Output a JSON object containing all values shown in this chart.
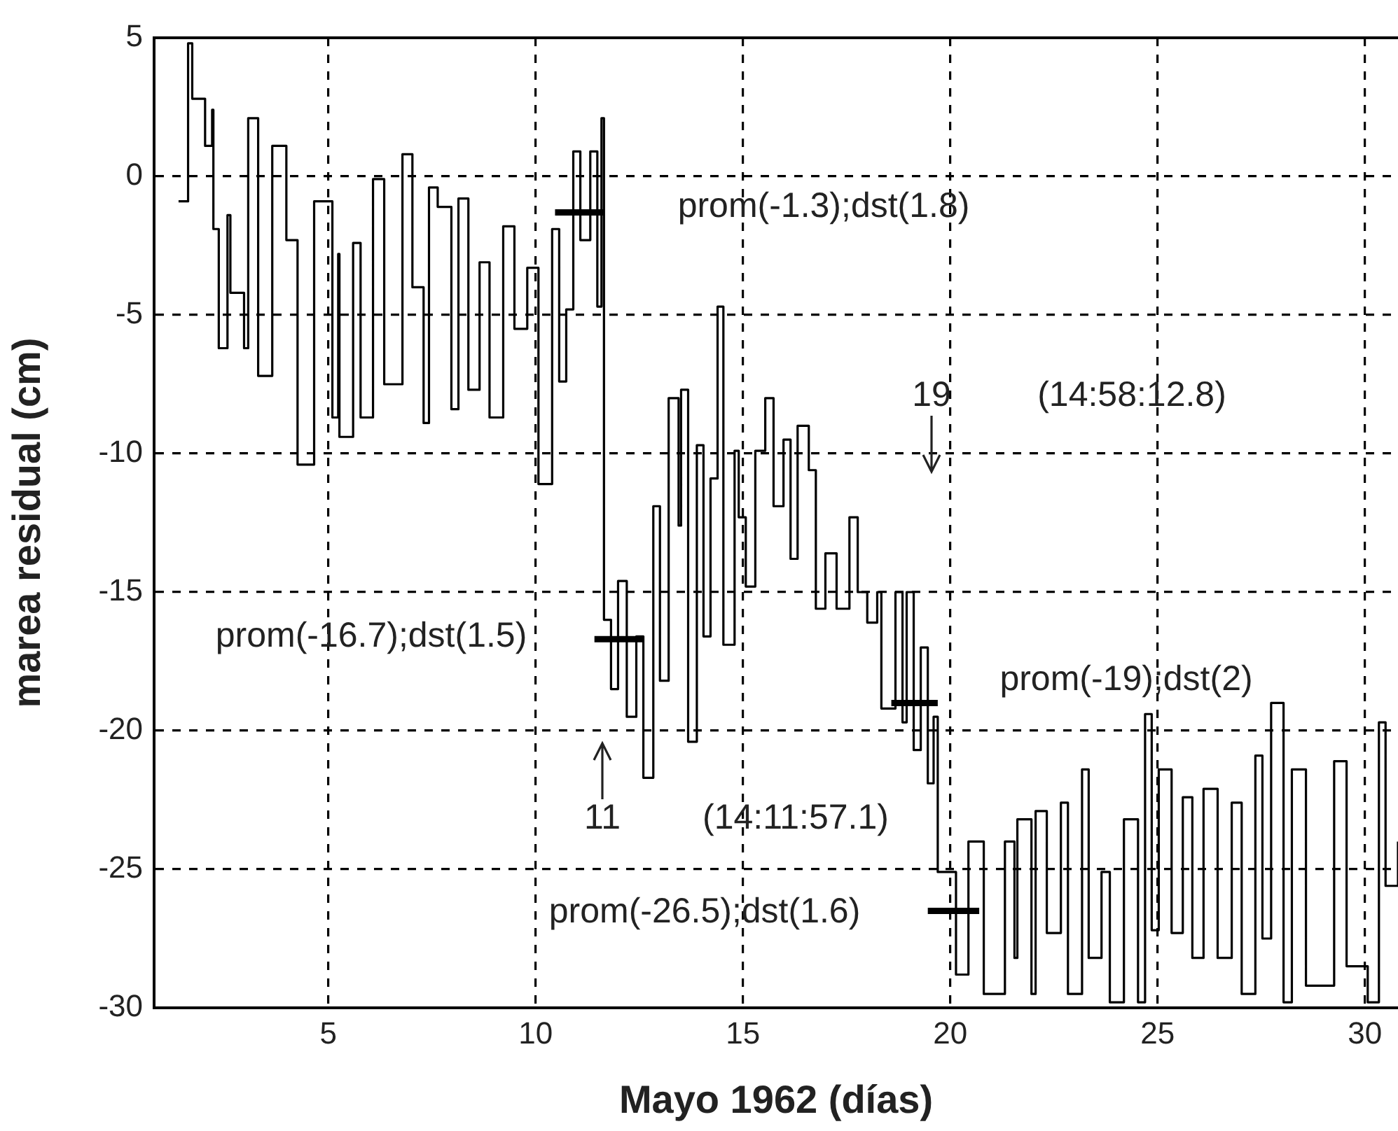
{
  "chart_data": {
    "type": "step",
    "xlabel": "Mayo 1962 (días)",
    "ylabel": "marea residual (cm)",
    "xlim": [
      0.8,
      30.8
    ],
    "xticks": [
      5,
      10,
      15,
      20,
      25,
      30
    ],
    "ylim": [
      -30,
      5
    ],
    "yticks": [
      5,
      0,
      -5,
      -10,
      -15,
      -20,
      -25,
      -30
    ],
    "grid": true,
    "legend": false,
    "marker": "none",
    "series": [
      {
        "color": "#000000",
        "x": [
          1.39,
          1.62,
          1.72,
          2.03,
          2.2,
          2.23,
          2.36,
          2.57,
          2.64,
          2.97,
          3.07,
          3.31,
          3.65,
          3.99,
          4.26,
          4.66,
          5.1,
          5.24,
          5.27,
          5.6,
          5.78,
          6.08,
          6.35,
          6.79,
          7.03,
          7.3,
          7.43,
          7.64,
          7.97,
          8.14,
          8.38,
          8.65,
          8.89,
          9.22,
          9.49,
          9.8,
          10.07,
          10.4,
          10.57,
          10.74,
          10.91,
          11.08,
          11.32,
          11.49,
          11.59,
          11.65,
          11.82,
          11.99,
          12.2,
          12.43,
          12.6,
          12.84,
          13.0,
          13.21,
          13.45,
          13.51,
          13.68,
          13.89,
          14.05,
          14.22,
          14.39,
          14.53,
          14.8,
          14.9,
          15.07,
          15.3,
          15.54,
          15.74,
          15.98,
          16.15,
          16.32,
          16.59,
          16.76,
          16.99,
          17.26,
          17.57,
          17.77,
          18.0,
          18.24,
          18.34,
          18.68,
          18.85,
          18.95,
          19.12,
          19.29,
          19.46,
          19.6,
          19.7,
          20.14,
          20.44,
          20.81,
          21.32,
          21.55,
          21.62,
          21.96,
          22.06,
          22.33,
          22.67,
          22.84,
          23.18,
          23.34,
          23.65,
          23.85,
          24.19,
          24.53,
          24.7,
          24.86,
          25.03,
          25.34,
          25.61,
          25.84,
          26.11,
          26.45,
          26.79,
          27.03,
          27.36,
          27.53,
          27.74,
          28.04,
          28.24,
          28.58,
          29.26,
          29.56,
          30.07,
          30.34,
          30.5,
          30.8
        ],
        "values": [
          -0.9,
          4.8,
          2.8,
          1.1,
          2.4,
          -1.9,
          -6.2,
          -1.4,
          -4.2,
          -6.2,
          2.1,
          -7.2,
          1.1,
          -2.3,
          -10.4,
          -0.9,
          -8.7,
          -2.8,
          -9.4,
          -2.4,
          -8.7,
          -0.1,
          -7.5,
          0.8,
          -4.0,
          -8.9,
          -0.4,
          -1.1,
          -8.4,
          -0.8,
          -7.7,
          -3.1,
          -8.7,
          -1.8,
          -5.5,
          -3.3,
          -11.1,
          -1.9,
          -7.4,
          -4.8,
          0.9,
          -2.3,
          0.9,
          -4.7,
          2.1,
          -16,
          -18.5,
          -14.6,
          -19.5,
          -16.6,
          -21.7,
          -11.9,
          -18.2,
          -8.0,
          -12.6,
          -7.7,
          -20.4,
          -9.7,
          -16.6,
          -10.9,
          -4.7,
          -16.9,
          -9.9,
          -12.3,
          -14.8,
          -9.9,
          -8.0,
          -11.9,
          -9.5,
          -13.8,
          -9.0,
          -10.6,
          -15.6,
          -13.6,
          -15.6,
          -12.3,
          -15.0,
          -16.1,
          -15.0,
          -19.2,
          -15.0,
          -19.7,
          -15.0,
          -20.7,
          -17.0,
          -21.9,
          -19.5,
          -25.1,
          -28.8,
          -24.0,
          -29.5,
          -24.0,
          -28.2,
          -23.2,
          -29.5,
          -22.9,
          -27.3,
          -22.6,
          -29.5,
          -21.4,
          -28.2,
          -25.1,
          -29.8,
          -23.2,
          -29.8,
          -19.4,
          -27.2,
          -21.4,
          -27.3,
          -22.4,
          -28.2,
          -22.1,
          -28.2,
          -22.6,
          -29.5,
          -20.9,
          -27.5,
          -19.0,
          -29.8,
          -21.4,
          -29.2,
          -21.1,
          -28.5,
          -29.8,
          -19.7,
          -25.6,
          -24.0
        ]
      },
      {
        "type": "line",
        "color": "#000000",
        "x": [
          10.47,
          11.65
        ],
        "values": [
          -1.3,
          -1.3
        ]
      },
      {
        "type": "line",
        "color": "#000000",
        "x": [
          11.42,
          12.6
        ],
        "values": [
          -16.7,
          -16.7
        ]
      },
      {
        "type": "line",
        "color": "#000000",
        "x": [
          18.58,
          19.7
        ],
        "values": [
          -19,
          -19
        ]
      },
      {
        "type": "line",
        "color": "#000000",
        "x": [
          19.46,
          20.7
        ],
        "values": [
          -26.5,
          -26.5
        ]
      }
    ],
    "annotations": [
      "prom(-1.3);dst(1.8)",
      "19",
      "(14:58:12.8)",
      "prom(-16.7);dst(1.5)",
      "prom(-19);dst(2)",
      "11",
      "(14:11:57.1)",
      "prom(-26.5);dst(1.6)"
    ]
  }
}
